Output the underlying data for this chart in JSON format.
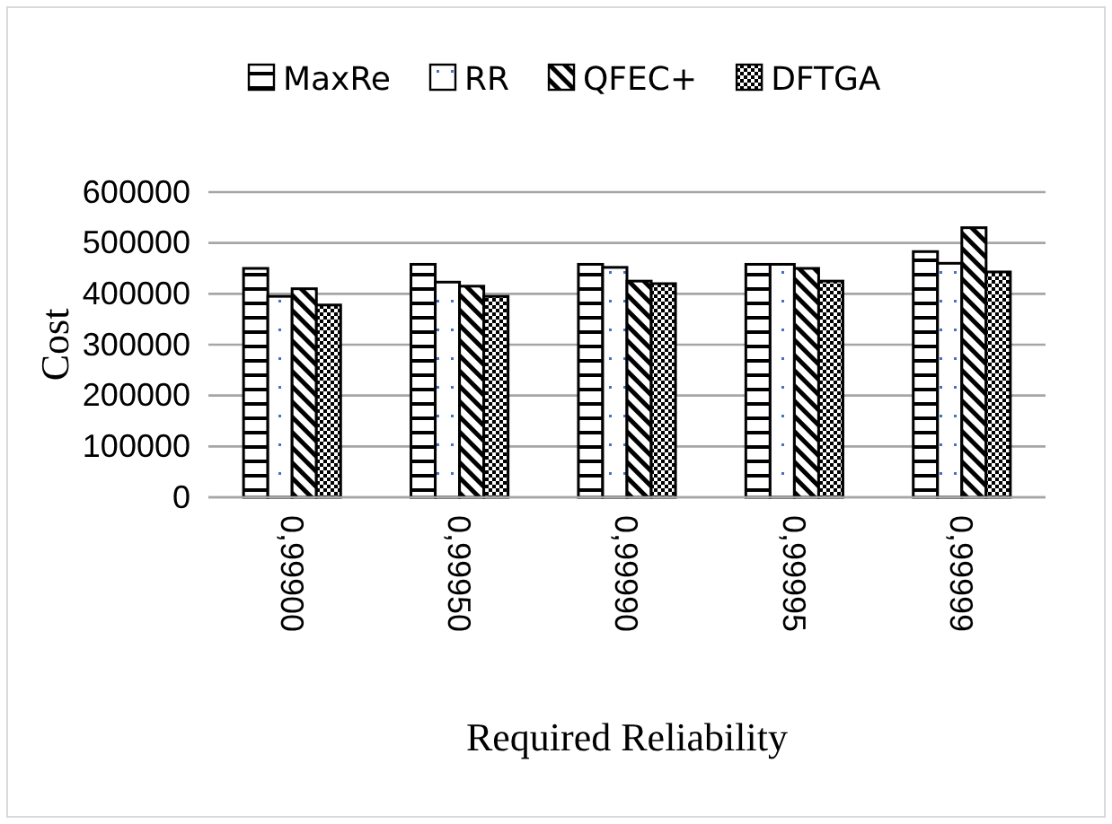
{
  "chart_data": {
    "type": "bar",
    "xlabel": "Required Reliability",
    "ylabel": "Cost",
    "categories": [
      "0,99900",
      "0,99950",
      "0,99990",
      "0,99995",
      "0,99999"
    ],
    "series": [
      {
        "name": "MaxRe",
        "color": "#000000",
        "values": [
          450000,
          458000,
          458000,
          458000,
          483000
        ]
      },
      {
        "name": "RR",
        "color": "#000000",
        "values": [
          395000,
          423000,
          452000,
          458000,
          460000
        ]
      },
      {
        "name": "QFEC+",
        "color": "#000000",
        "values": [
          410000,
          415000,
          425000,
          450000,
          530000
        ]
      },
      {
        "name": "DFTGA",
        "color": "#000000",
        "values": [
          378000,
          395000,
          420000,
          425000,
          443000
        ]
      }
    ],
    "ylim": [
      0,
      600000
    ],
    "yticks": [
      0,
      100000,
      200000,
      300000,
      400000,
      500000,
      600000
    ],
    "grid": "y",
    "legend": "top"
  }
}
